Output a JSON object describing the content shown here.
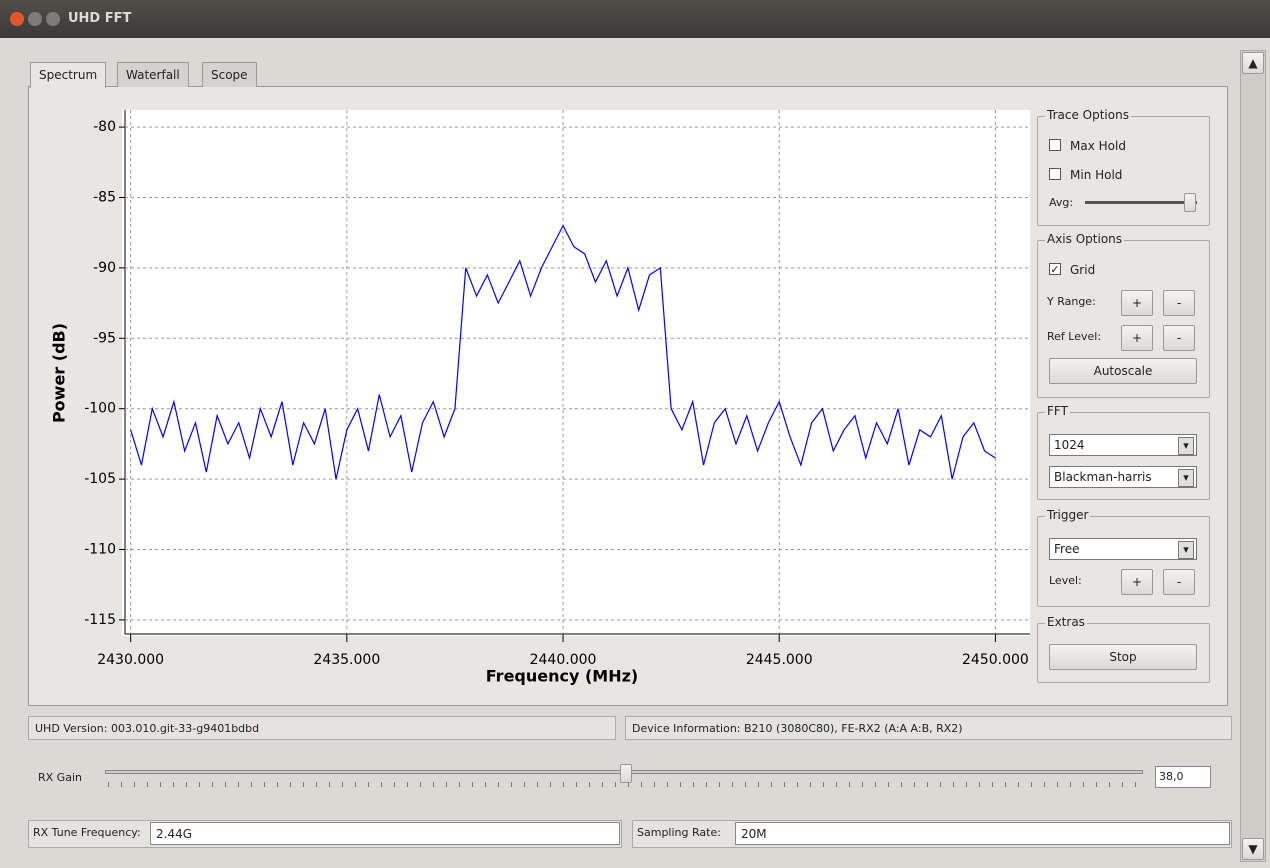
{
  "window": {
    "title": "UHD FFT"
  },
  "tabs": [
    "Spectrum",
    "Waterfall",
    "Scope"
  ],
  "chart_data": {
    "type": "line",
    "xlabel": "Frequency (MHz)",
    "ylabel": "Power (dB)",
    "xlim": [
      2429.8,
      2450.8
    ],
    "ylim": [
      -116,
      -79
    ],
    "xticks": [
      {
        "value": 2430,
        "label": "2430.000"
      },
      {
        "value": 2435,
        "label": "2435.000"
      },
      {
        "value": 2440,
        "label": "2440.000"
      },
      {
        "value": 2445,
        "label": "2445.000"
      },
      {
        "value": 2450,
        "label": "2450.000"
      }
    ],
    "yticks": [
      -80,
      -85,
      -90,
      -95,
      -100,
      -105,
      -110,
      -115
    ],
    "grid": true,
    "color": "#0000ff",
    "x": [
      2430,
      2430.25,
      2430.5,
      2430.75,
      2431,
      2431.25,
      2431.5,
      2431.75,
      2432,
      2432.25,
      2432.5,
      2432.75,
      2433,
      2433.25,
      2433.5,
      2433.75,
      2434,
      2434.25,
      2434.5,
      2434.75,
      2435,
      2435.25,
      2435.5,
      2435.75,
      2436,
      2436.25,
      2436.5,
      2436.75,
      2437,
      2437.25,
      2437.5,
      2437.75,
      2438,
      2438.25,
      2438.5,
      2438.75,
      2439,
      2439.25,
      2439.5,
      2439.75,
      2440,
      2440.25,
      2440.5,
      2440.75,
      2441,
      2441.25,
      2441.5,
      2441.75,
      2442,
      2442.25,
      2442.5,
      2442.75,
      2443,
      2443.25,
      2443.5,
      2443.75,
      2444,
      2444.25,
      2444.5,
      2444.75,
      2445,
      2445.25,
      2445.5,
      2445.75,
      2446,
      2446.25,
      2446.5,
      2446.75,
      2447,
      2447.25,
      2447.5,
      2447.75,
      2448,
      2448.25,
      2448.5,
      2448.75,
      2449,
      2449.25,
      2449.5,
      2449.75,
      2450
    ],
    "values": [
      -101.5,
      -104,
      -100,
      -102,
      -99.5,
      -103,
      -101,
      -104.5,
      -100.5,
      -102.5,
      -101,
      -103.5,
      -100,
      -102,
      -99.5,
      -104,
      -101,
      -102.5,
      -100,
      -105,
      -101.5,
      -100,
      -103,
      -99,
      -102,
      -100.5,
      -104.5,
      -101,
      -99.5,
      -102,
      -100,
      -90,
      -92,
      -90.5,
      -92.5,
      -91,
      -89.5,
      -92,
      -90,
      -88.5,
      -87,
      -88.5,
      -89,
      -91,
      -89.5,
      -92,
      -90,
      -93,
      -90.5,
      -90,
      -100,
      -101.5,
      -99.5,
      -104,
      -101,
      -100,
      -102.5,
      -100.5,
      -103,
      -101,
      -99.5,
      -102,
      -104,
      -101,
      -100,
      -103,
      -101.5,
      -100.5,
      -103.5,
      -101,
      -102.5,
      -100,
      -104,
      -101.5,
      -102,
      -100.5,
      -105,
      -102,
      -101,
      -103,
      -103.5
    ]
  },
  "controls": {
    "trace_options": {
      "title": "Trace Options",
      "max_hold": {
        "label": "Max Hold",
        "checked": false
      },
      "min_hold": {
        "label": "Min Hold",
        "checked": false
      },
      "avg_label": "Avg:"
    },
    "axis_options": {
      "title": "Axis Options",
      "grid_label": "Grid",
      "y_range": {
        "label": "Y Range:",
        "plus": "+",
        "minus": "-"
      },
      "ref_level": {
        "label": "Ref Level:",
        "plus": "+",
        "minus": "-"
      },
      "autoscale": "Autoscale"
    },
    "fft": {
      "title": "FFT",
      "size": "1024",
      "window": "Blackman-harris"
    },
    "trigger": {
      "title": "Trigger",
      "mode": "Free",
      "level": {
        "label": "Level:",
        "plus": "+",
        "minus": "-"
      }
    },
    "extras": {
      "title": "Extras",
      "stop": "Stop"
    }
  },
  "status": {
    "uhd_version": "UHD Version: 003.010.git-33-g9401bdbd",
    "device_info": "Device Information: B210 (3080C80), FE-RX2 (A:A A:B, RX2)"
  },
  "rx_gain": {
    "label": "RX Gain",
    "value": "38,0"
  },
  "rx_tune": {
    "label": "RX Tune Frequency:",
    "value": "2.44G"
  },
  "sampling_rate": {
    "label": "Sampling Rate:",
    "value": "20M"
  }
}
